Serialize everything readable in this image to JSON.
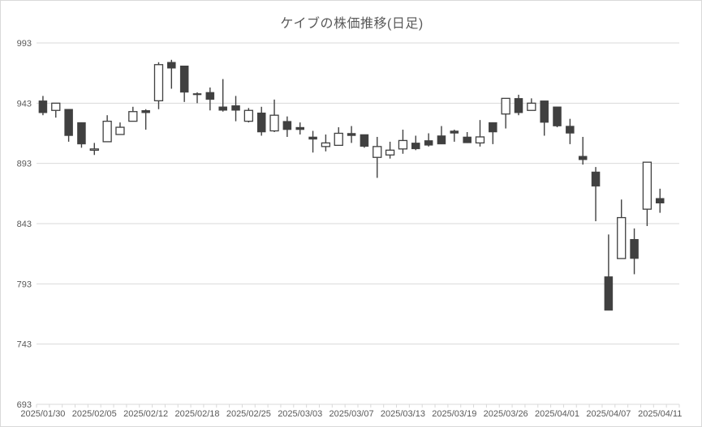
{
  "chart_data": {
    "type": "candlestick",
    "title": "ケイブの株価推移(日足)",
    "ylabel": "",
    "xlabel": "",
    "ylim": [
      693,
      993
    ],
    "y_ticks": [
      693,
      743,
      793,
      843,
      893,
      943,
      993
    ],
    "grid": "horizontal",
    "legend": "none",
    "x_tick_label_interval": 4,
    "x_tick_labels": [
      "2025/01/30",
      "2025/02/05",
      "2025/02/12",
      "2025/02/18",
      "2025/02/25",
      "2025/03/03",
      "2025/03/07",
      "2025/03/13",
      "2025/03/19",
      "2025/03/26",
      "2025/04/01",
      "2025/04/07",
      "2025/04/11"
    ],
    "candles": [
      {
        "date": "2025/01/30",
        "open": 945,
        "high": 949,
        "low": 933,
        "close": 935
      },
      {
        "date": "2025/01/31",
        "open": 937,
        "high": 943,
        "low": 931,
        "close": 943
      },
      {
        "date": "2025/02/03",
        "open": 938,
        "high": 938,
        "low": 911,
        "close": 916
      },
      {
        "date": "2025/02/04",
        "open": 927,
        "high": 927,
        "low": 906,
        "close": 909
      },
      {
        "date": "2025/02/05",
        "open": 904,
        "high": 910,
        "low": 900,
        "close": 905
      },
      {
        "date": "2025/02/06",
        "open": 911,
        "high": 933,
        "low": 911,
        "close": 928
      },
      {
        "date": "2025/02/07",
        "open": 917,
        "high": 927,
        "low": 917,
        "close": 923
      },
      {
        "date": "2025/02/10",
        "open": 928,
        "high": 940,
        "low": 928,
        "close": 936
      },
      {
        "date": "2025/02/12",
        "open": 937,
        "high": 938,
        "low": 921,
        "close": 935
      },
      {
        "date": "2025/02/13",
        "open": 945,
        "high": 977,
        "low": 938,
        "close": 975
      },
      {
        "date": "2025/02/14",
        "open": 977,
        "high": 979,
        "low": 955,
        "close": 972
      },
      {
        "date": "2025/02/17",
        "open": 974,
        "high": 974,
        "low": 944,
        "close": 952
      },
      {
        "date": "2025/02/18",
        "open": 951,
        "high": 952,
        "low": 943,
        "close": 950
      },
      {
        "date": "2025/02/19",
        "open": 952,
        "high": 956,
        "low": 937,
        "close": 946
      },
      {
        "date": "2025/02/20",
        "open": 940,
        "high": 963,
        "low": 936,
        "close": 937
      },
      {
        "date": "2025/02/21",
        "open": 941,
        "high": 949,
        "low": 928,
        "close": 937
      },
      {
        "date": "2025/02/25",
        "open": 928,
        "high": 939,
        "low": 927,
        "close": 937
      },
      {
        "date": "2025/02/26",
        "open": 935,
        "high": 940,
        "low": 916,
        "close": 919
      },
      {
        "date": "2025/02/27",
        "open": 920,
        "high": 946,
        "low": 919,
        "close": 933
      },
      {
        "date": "2025/02/28",
        "open": 928,
        "high": 932,
        "low": 915,
        "close": 921
      },
      {
        "date": "2025/03/03",
        "open": 923,
        "high": 927,
        "low": 917,
        "close": 921
      },
      {
        "date": "2025/03/04",
        "open": 915,
        "high": 920,
        "low": 902,
        "close": 913
      },
      {
        "date": "2025/03/05",
        "open": 907,
        "high": 917,
        "low": 903,
        "close": 910
      },
      {
        "date": "2025/03/06",
        "open": 908,
        "high": 923,
        "low": 908,
        "close": 918
      },
      {
        "date": "2025/03/07",
        "open": 918,
        "high": 924,
        "low": 910,
        "close": 916
      },
      {
        "date": "2025/03/10",
        "open": 917,
        "high": 917,
        "low": 906,
        "close": 907
      },
      {
        "date": "2025/03/11",
        "open": 898,
        "high": 915,
        "low": 881,
        "close": 907
      },
      {
        "date": "2025/03/12",
        "open": 900,
        "high": 911,
        "low": 897,
        "close": 904
      },
      {
        "date": "2025/03/13",
        "open": 905,
        "high": 921,
        "low": 901,
        "close": 912
      },
      {
        "date": "2025/03/14",
        "open": 910,
        "high": 916,
        "low": 904,
        "close": 905
      },
      {
        "date": "2025/03/17",
        "open": 912,
        "high": 918,
        "low": 907,
        "close": 908
      },
      {
        "date": "2025/03/18",
        "open": 916,
        "high": 924,
        "low": 909,
        "close": 909
      },
      {
        "date": "2025/03/19",
        "open": 920,
        "high": 921,
        "low": 911,
        "close": 918
      },
      {
        "date": "2025/03/21",
        "open": 915,
        "high": 919,
        "low": 910,
        "close": 910
      },
      {
        "date": "2025/03/24",
        "open": 910,
        "high": 929,
        "low": 907,
        "close": 915
      },
      {
        "date": "2025/03/25",
        "open": 927,
        "high": 927,
        "low": 909,
        "close": 919
      },
      {
        "date": "2025/03/26",
        "open": 934,
        "high": 947,
        "low": 922,
        "close": 947
      },
      {
        "date": "2025/03/27",
        "open": 947,
        "high": 950,
        "low": 933,
        "close": 935
      },
      {
        "date": "2025/03/28",
        "open": 937,
        "high": 947,
        "low": 937,
        "close": 943
      },
      {
        "date": "2025/03/31",
        "open": 945,
        "high": 945,
        "low": 916,
        "close": 927
      },
      {
        "date": "2025/04/01",
        "open": 940,
        "high": 940,
        "low": 923,
        "close": 924
      },
      {
        "date": "2025/04/02",
        "open": 924,
        "high": 930,
        "low": 909,
        "close": 918
      },
      {
        "date": "2025/04/03",
        "open": 899,
        "high": 915,
        "low": 892,
        "close": 896
      },
      {
        "date": "2025/04/04",
        "open": 886,
        "high": 890,
        "low": 845,
        "close": 874
      },
      {
        "date": "2025/04/07",
        "open": 799,
        "high": 834,
        "low": 771,
        "close": 771
      },
      {
        "date": "2025/04/08",
        "open": 814,
        "high": 863,
        "low": 814,
        "close": 848
      },
      {
        "date": "2025/04/09",
        "open": 830,
        "high": 839,
        "low": 801,
        "close": 814
      },
      {
        "date": "2025/04/10",
        "open": 855,
        "high": 894,
        "low": 841,
        "close": 894
      },
      {
        "date": "2025/04/11",
        "open": 864,
        "high": 872,
        "low": 852,
        "close": 860
      }
    ]
  },
  "colors": {
    "up_fill": "#ffffff",
    "down_fill": "#404040",
    "outline": "#404040",
    "gridline": "#d9d9d9",
    "axis": "#d9d9d9",
    "text": "#595959",
    "background": "#ffffff"
  }
}
